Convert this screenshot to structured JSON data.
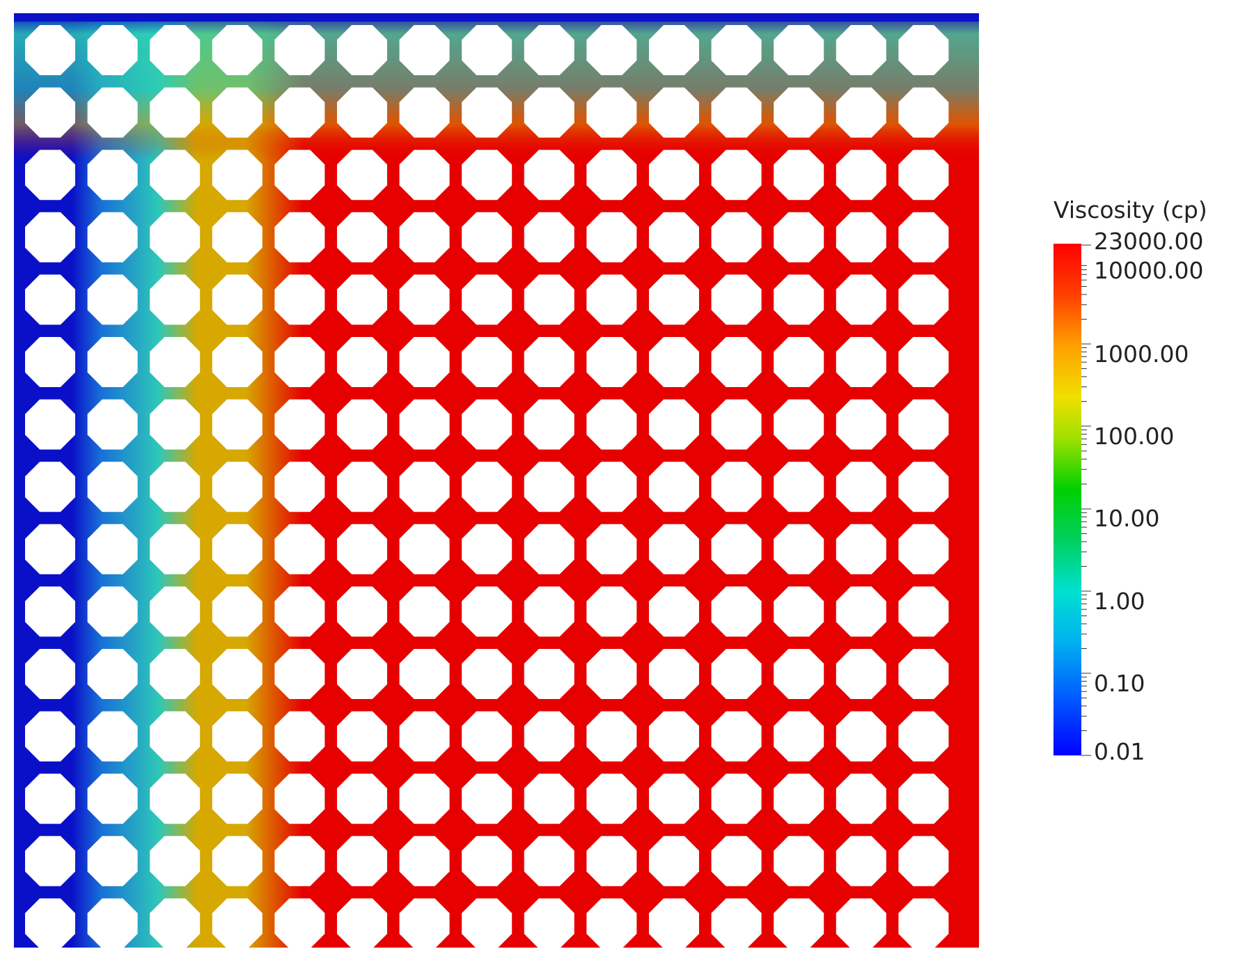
{
  "colorbar": {
    "title": "Viscosity (cp)",
    "labels": [
      "23000.00",
      "10000.00",
      "1000.00",
      "100.00",
      "10.00",
      "1.00",
      "0.10",
      "0.01"
    ],
    "scale": "log",
    "colormap": [
      "#0000ff",
      "#00a0ff",
      "#00e6e6",
      "#00e000",
      "#e6e600",
      "#ffaa00",
      "#ff0000"
    ]
  },
  "field": {
    "grid_rows": 15,
    "grid_cols": 15,
    "obstacle_shape": "octagon",
    "colors": {
      "low_viscosity": "#0a10c8",
      "intermediate_viscosity": "#2ed0b0",
      "mixing_zone": "#d6a800",
      "high_viscosity": "#e60000",
      "obstacle": "#ffffff"
    }
  }
}
